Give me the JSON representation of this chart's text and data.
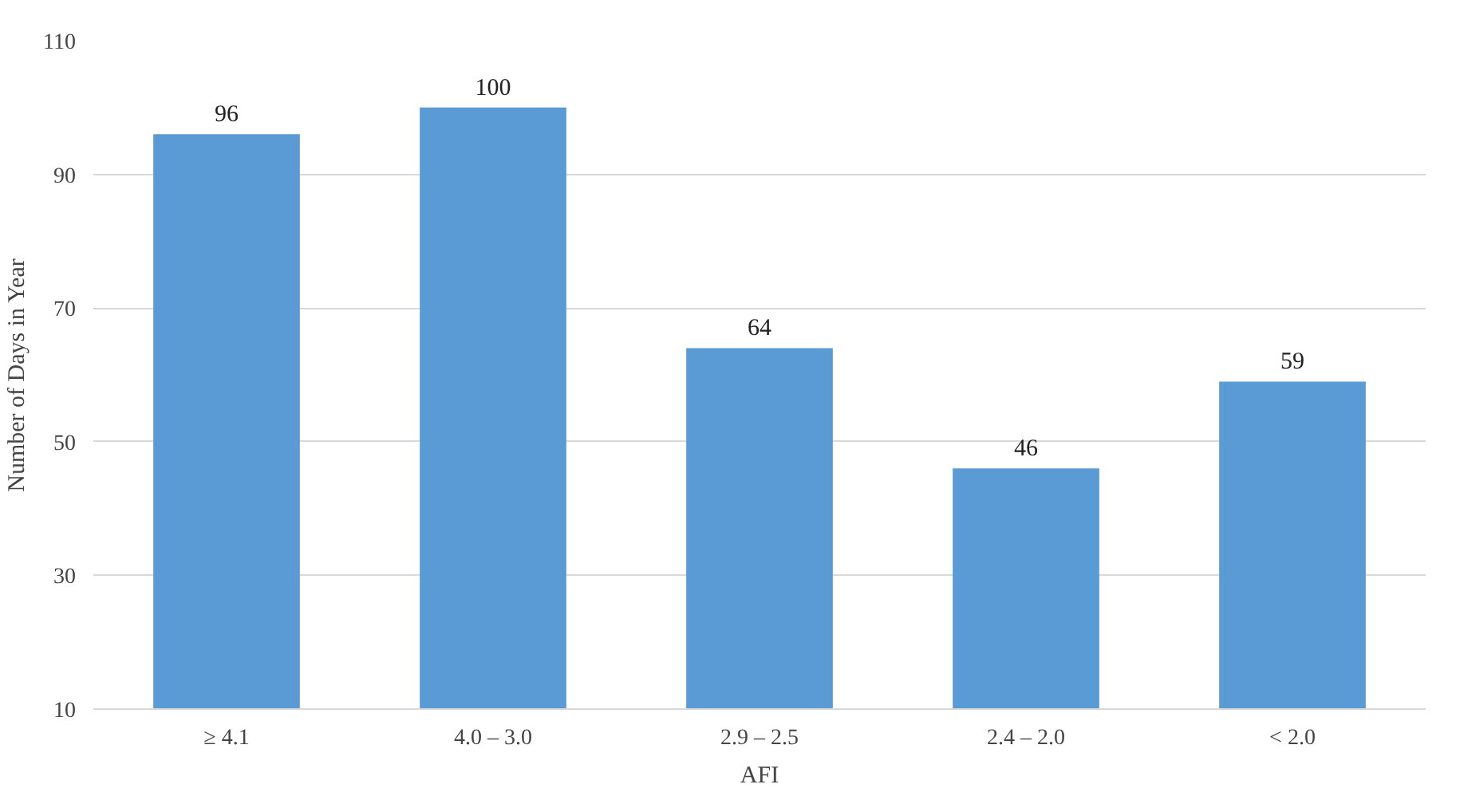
{
  "chart_data": {
    "type": "bar",
    "xlabel": "AFI",
    "ylabel": "Number of Days in Year",
    "categories": [
      "≥ 4.1",
      "4.0 – 3.0",
      "2.9 – 2.5",
      "2.4 – 2.0",
      "< 2.0"
    ],
    "values": [
      96,
      100,
      64,
      46,
      59
    ],
    "color": "#5b9bd5",
    "ylim": [
      10,
      110
    ],
    "yticks": [
      10,
      30,
      50,
      70,
      90,
      110
    ],
    "grid": "y",
    "data_labels": true
  }
}
